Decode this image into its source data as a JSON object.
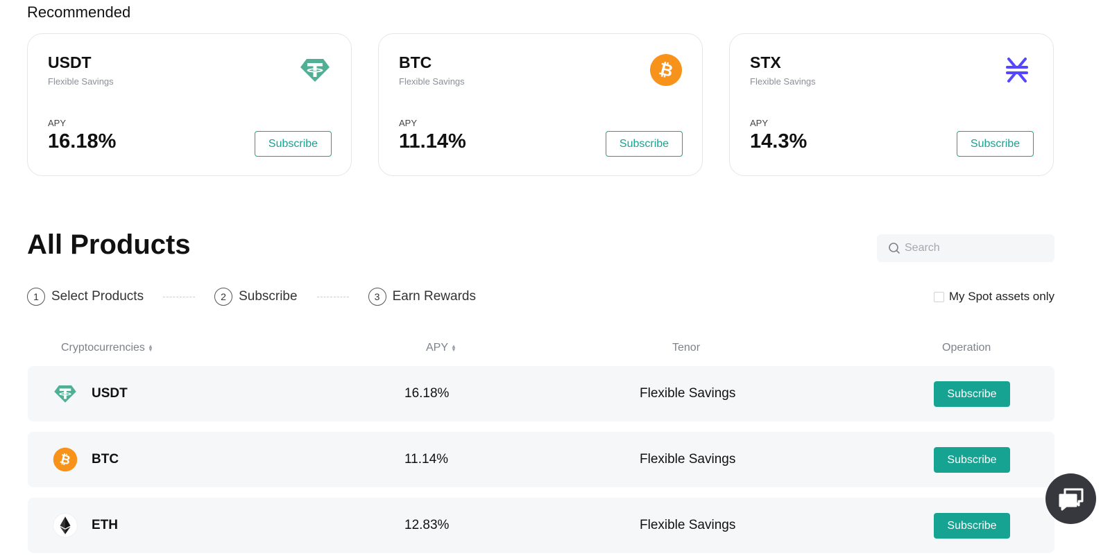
{
  "recommended": {
    "title": "Recommended",
    "cards": [
      {
        "symbol": "USDT",
        "type": "Flexible Savings",
        "apy_label": "APY",
        "apy": "16.18%",
        "button": "Subscribe",
        "icon": "tether-icon"
      },
      {
        "symbol": "BTC",
        "type": "Flexible Savings",
        "apy_label": "APY",
        "apy": "11.14%",
        "button": "Subscribe",
        "icon": "bitcoin-icon"
      },
      {
        "symbol": "STX",
        "type": "Flexible Savings",
        "apy_label": "APY",
        "apy": "14.3%",
        "button": "Subscribe",
        "icon": "stacks-icon"
      }
    ]
  },
  "all_products": {
    "title": "All Products",
    "search_placeholder": "Search",
    "steps": [
      {
        "num": "1",
        "label": "Select Products"
      },
      {
        "num": "2",
        "label": "Subscribe"
      },
      {
        "num": "3",
        "label": "Earn Rewards"
      }
    ],
    "spot_only_label": "My Spot assets only",
    "columns": [
      "Cryptocurrencies",
      "APY",
      "Tenor",
      "Operation"
    ],
    "rows": [
      {
        "symbol": "USDT",
        "apy": "16.18%",
        "tenor": "Flexible Savings",
        "button": "Subscribe",
        "icon": "tether-icon"
      },
      {
        "symbol": "BTC",
        "apy": "11.14%",
        "tenor": "Flexible Savings",
        "button": "Subscribe",
        "icon": "bitcoin-icon"
      },
      {
        "symbol": "ETH",
        "apy": "12.83%",
        "tenor": "Flexible Savings",
        "button": "Subscribe",
        "icon": "ethereum-icon"
      }
    ]
  },
  "colors": {
    "accent": "#16a391",
    "tether": "#50af95",
    "bitcoin": "#f7931a",
    "stacks": "#5546ff",
    "chat_bg": "#36383d"
  }
}
